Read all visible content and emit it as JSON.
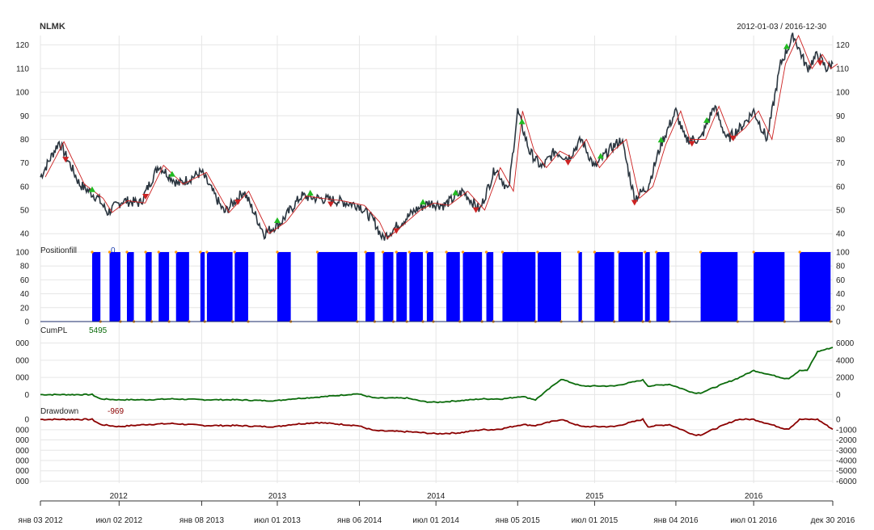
{
  "chart_data": {
    "type": "line",
    "title": "NLMK",
    "date_range": "2012-01-03 / 2016-12-30",
    "x_start": "2012-01-03",
    "x_end": "2016-12-30",
    "x_tick_labels": [
      "янв 03 2012",
      "июл 02 2012",
      "янв 08 2013",
      "июл 01 2013",
      "янв 06 2014",
      "июл 01 2014",
      "янв 05 2015",
      "июл 01 2015",
      "янв 04 2016",
      "июл 01 2016",
      "дек 30 2016"
    ],
    "x_tick_dates": [
      "2012-01-03",
      "2012-07-02",
      "2013-01-08",
      "2013-07-01",
      "2014-01-06",
      "2014-07-01",
      "2015-01-05",
      "2015-07-01",
      "2016-01-04",
      "2016-07-01",
      "2016-12-30"
    ],
    "year_labels": [
      "2012",
      "2013",
      "2014",
      "2015",
      "2016"
    ],
    "year_dates": [
      "2012-07-01",
      "2013-07-01",
      "2014-07-01",
      "2015-07-01",
      "2016-07-01"
    ],
    "panels": [
      {
        "id": "price",
        "series_name": "NLMK",
        "ylim": [
          37,
          124
        ],
        "y_ticks": [
          40,
          50,
          60,
          70,
          80,
          90,
          100,
          110,
          120
        ],
        "price_series": {
          "dates": [
            "2012-01-03",
            "2012-02-15",
            "2012-04-02",
            "2012-05-15",
            "2012-06-05",
            "2012-07-10",
            "2012-08-20",
            "2012-10-01",
            "2012-11-15",
            "2013-01-08",
            "2013-03-01",
            "2013-04-15",
            "2013-06-01",
            "2013-07-10",
            "2013-08-25",
            "2013-10-01",
            "2013-11-15",
            "2014-01-06",
            "2014-02-10",
            "2014-02-28",
            "2014-04-01",
            "2014-05-15",
            "2014-06-15",
            "2014-07-20",
            "2014-09-01",
            "2014-10-10",
            "2014-11-15",
            "2014-12-15",
            "2015-01-05",
            "2015-02-01",
            "2015-03-01",
            "2015-04-01",
            "2015-05-01",
            "2015-06-01",
            "2015-07-01",
            "2015-08-01",
            "2015-09-01",
            "2015-10-01",
            "2015-11-01",
            "2015-12-01",
            "2016-01-04",
            "2016-01-25",
            "2016-03-01",
            "2016-04-01",
            "2016-05-01",
            "2016-06-01",
            "2016-07-01",
            "2016-08-01",
            "2016-09-01",
            "2016-10-01",
            "2016-11-01",
            "2016-11-25",
            "2016-12-15",
            "2016-12-30"
          ],
          "values": [
            64,
            79,
            61,
            55,
            49,
            54,
            53,
            69,
            61,
            66,
            49,
            58,
            40,
            45,
            56,
            55,
            54,
            52,
            45,
            38,
            43,
            50,
            53,
            52,
            58,
            50,
            68,
            58,
            92,
            75,
            68,
            75,
            72,
            80,
            68,
            75,
            80,
            55,
            60,
            78,
            92,
            80,
            80,
            94,
            80,
            85,
            92,
            80,
            112,
            124,
            110,
            116,
            110,
            112
          ]
        },
        "ma_line": true,
        "buy_markers": [
          "2012-05-01",
          "2012-11-01",
          "2013-07-01",
          "2013-09-15",
          "2014-06-01",
          "2014-08-15",
          "2015-01-15",
          "2015-07-15",
          "2015-12-01",
          "2016-03-15",
          "2016-09-15"
        ],
        "sell_markers": [
          "2012-03-01",
          "2012-09-01",
          "2013-04-01",
          "2013-11-01",
          "2014-04-01",
          "2014-10-01",
          "2015-05-01",
          "2015-10-01",
          "2016-02-10",
          "2016-05-15",
          "2016-12-01"
        ]
      },
      {
        "id": "positionfill",
        "series_name": "Positionfill",
        "last_value": "0",
        "ylim": [
          0,
          100
        ],
        "y_ticks": [
          0,
          20,
          40,
          60,
          80,
          100
        ],
        "intervals": [
          [
            "2012-05-01",
            "2012-05-20"
          ],
          [
            "2012-06-10",
            "2012-07-05"
          ],
          [
            "2012-07-20",
            "2012-08-05"
          ],
          [
            "2012-09-01",
            "2012-09-15"
          ],
          [
            "2012-10-01",
            "2012-10-25"
          ],
          [
            "2012-11-10",
            "2012-12-10"
          ],
          [
            "2013-01-05",
            "2013-01-15"
          ],
          [
            "2013-01-20",
            "2013-03-20"
          ],
          [
            "2013-03-25",
            "2013-04-25"
          ],
          [
            "2013-07-01",
            "2013-08-01"
          ],
          [
            "2013-10-01",
            "2014-01-01"
          ],
          [
            "2014-01-20",
            "2014-02-10"
          ],
          [
            "2014-03-01",
            "2014-03-25"
          ],
          [
            "2014-04-01",
            "2014-04-25"
          ],
          [
            "2014-05-01",
            "2014-06-01"
          ],
          [
            "2014-06-10",
            "2014-06-25"
          ],
          [
            "2014-07-25",
            "2014-08-25"
          ],
          [
            "2014-09-01",
            "2014-10-15"
          ],
          [
            "2014-10-25",
            "2014-11-10"
          ],
          [
            "2014-12-01",
            "2015-02-15"
          ],
          [
            "2015-02-20",
            "2015-04-15"
          ],
          [
            "2015-05-25",
            "2015-06-02"
          ],
          [
            "2015-07-01",
            "2015-08-15"
          ],
          [
            "2015-08-25",
            "2015-10-20"
          ],
          [
            "2015-10-25",
            "2015-11-05"
          ],
          [
            "2015-11-20",
            "2015-12-20"
          ],
          [
            "2016-03-01",
            "2016-05-25"
          ],
          [
            "2016-07-01",
            "2016-09-10"
          ],
          [
            "2016-10-15",
            "2016-12-25"
          ]
        ]
      },
      {
        "id": "cumpl",
        "series_name": "CumPL",
        "last_value": "5495",
        "ylim": [
          -900,
          7000
        ],
        "y_ticks": [
          0,
          2000,
          4000,
          6000
        ],
        "y_tick_labels_left": [
          "0",
          "000",
          "000",
          "000"
        ],
        "dates": [
          "2012-01-03",
          "2012-05-01",
          "2012-05-20",
          "2012-07-01",
          "2012-09-01",
          "2012-11-01",
          "2013-01-15",
          "2013-03-25",
          "2013-06-01",
          "2013-07-01",
          "2013-08-01",
          "2013-10-01",
          "2014-01-01",
          "2014-02-10",
          "2014-04-25",
          "2014-06-01",
          "2014-07-01",
          "2014-08-25",
          "2014-10-15",
          "2014-11-10",
          "2014-12-01",
          "2015-01-15",
          "2015-02-15",
          "2015-04-15",
          "2015-06-01",
          "2015-07-01",
          "2015-08-15",
          "2015-10-20",
          "2015-11-01",
          "2015-12-20",
          "2016-02-15",
          "2016-03-01",
          "2016-05-25",
          "2016-07-01",
          "2016-09-10",
          "2016-09-20",
          "2016-10-15",
          "2016-11-01",
          "2016-11-25",
          "2016-12-30"
        ],
        "values": [
          0,
          0,
          -500,
          -600,
          -600,
          -500,
          -600,
          -600,
          -700,
          -700,
          -500,
          -300,
          100,
          -400,
          -400,
          -800,
          -900,
          -700,
          -500,
          -500,
          -500,
          -200,
          -600,
          1800,
          1000,
          1000,
          1000,
          1700,
          1000,
          1200,
          200,
          200,
          1900,
          2800,
          1900,
          1900,
          2800,
          2800,
          5000,
          5495
        ]
      },
      {
        "id": "drawdown",
        "series_name": "Drawdown",
        "last_value": "-969",
        "ylim": [
          -6200,
          400
        ],
        "y_ticks": [
          -6000,
          -5000,
          -4000,
          -3000,
          -2000,
          -1000,
          0
        ],
        "y_tick_labels_left": [
          "000",
          "000",
          "000",
          "000",
          "000",
          "000",
          "0"
        ],
        "dates": [
          "2012-01-03",
          "2012-05-01",
          "2012-05-20",
          "2012-07-01",
          "2012-09-01",
          "2012-11-01",
          "2013-01-15",
          "2013-03-25",
          "2013-06-01",
          "2013-07-01",
          "2013-08-01",
          "2013-10-01",
          "2014-01-01",
          "2014-02-10",
          "2014-04-25",
          "2014-06-01",
          "2014-07-01",
          "2014-08-25",
          "2014-10-15",
          "2014-11-10",
          "2014-12-01",
          "2015-01-15",
          "2015-02-15",
          "2015-04-15",
          "2015-06-01",
          "2015-07-01",
          "2015-08-15",
          "2015-10-20",
          "2015-11-01",
          "2015-12-20",
          "2016-02-15",
          "2016-03-01",
          "2016-05-25",
          "2016-07-01",
          "2016-09-10",
          "2016-09-20",
          "2016-10-15",
          "2016-11-01",
          "2016-11-25",
          "2016-12-30"
        ],
        "values": [
          0,
          0,
          -500,
          -700,
          -500,
          -400,
          -600,
          -600,
          -700,
          -700,
          -500,
          -300,
          -600,
          -1100,
          -1200,
          -1300,
          -1400,
          -1300,
          -1000,
          -1000,
          -900,
          -500,
          -600,
          0,
          -700,
          -700,
          -700,
          0,
          -700,
          -500,
          -1500,
          -1500,
          0,
          0,
          -900,
          -900,
          0,
          0,
          0,
          -969
        ]
      }
    ]
  },
  "colors": {
    "price_line": "#2b3640",
    "ma_line": "#cc1f1f",
    "buy_marker": "#22bb22",
    "sell_marker": "#cc2222",
    "position_fill": "#0000ff",
    "position_edge": "#ff9900",
    "cumpl": "#0b6b0b",
    "drawdown": "#8b0000",
    "grid": "#e6e6e6"
  }
}
